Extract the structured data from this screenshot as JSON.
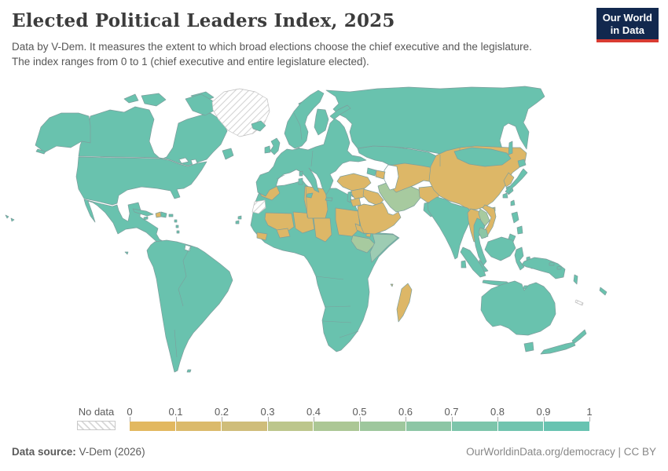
{
  "header": {
    "title": "Elected Political Leaders Index, 2025",
    "subtitle_line1": "Data by V-Dem. It measures the extent to which broad elections choose the chief executive and the legislature.",
    "subtitle_line2": "The index ranges from 0 to 1 (chief executive and entire legislature elected).",
    "logo_line1": "Our World",
    "logo_line2": "in Data",
    "logo_bg": "#12284E",
    "logo_accent": "#D93B32"
  },
  "legend": {
    "no_data_label": "No data",
    "ticks": [
      "0",
      "0.1",
      "0.2",
      "0.3",
      "0.4",
      "0.5",
      "0.6",
      "0.7",
      "0.8",
      "0.9",
      "1"
    ],
    "segment_colors": [
      "#E2B860",
      "#DBBA6B",
      "#CFBD7A",
      "#BCC68C",
      "#ACC795",
      "#9EC79D",
      "#8DC6A5",
      "#7DC5AB",
      "#71C4AF",
      "#68C3B1"
    ]
  },
  "footer": {
    "source_label": "Data source:",
    "source_value": " V-Dem (2026)",
    "right_text": "OurWorldinData.org/democracy | CC BY"
  },
  "chart_data": {
    "type": "heatmap",
    "title": "Elected Political Leaders Index, 2025",
    "legend_scale": {
      "min": 0,
      "max": 1,
      "tick_step": 0.1
    },
    "category_legend": {
      "hi": "high index (teal, ~0.8-1)",
      "mid": "middle index (sage green, ~0.4-0.6)",
      "mid2": "upper-middle index (green-teal, ~0.6-0.7)",
      "pale": "middle index (pale green-teal)",
      "lo": "low index (tan, ~0-0.3)",
      "nodata": "No data"
    }
  },
  "map": {
    "palette": {
      "hi": "#69C2AE",
      "lo": "#DDB767",
      "mid": "#A7CA9F",
      "mid2": "#8CC6A6",
      "pale": "#9DCCB3",
      "blank": "#FFFFFF",
      "border": "#7D9E9C",
      "nodata_stroke": "#BFBFBF"
    },
    "regions": [
      {
        "n": "canada",
        "c": "hi",
        "t": "115,48 140,40 158,43 172,36 190,40 196,52 193,64 190,80 196,95 205,103 212,100 220,88 224,70 227,57 238,52 255,47 268,44 283,54 289,67 281,84 271,94 263,103 251,107 239,111 228,108 215,103 203,101 100,99 102,85 108,70 113,57"
      },
      {
        "n": "alaska",
        "c": "hi",
        "t": "45,85 52,62 63,50 78,44 100,44 113,48 115,60 115,82 104,80 90,88 72,86 57,94"
      },
      {
        "n": "aleutians",
        "c": "hi",
        "t": "48,90 58,93 56,96 46,93"
      },
      {
        "n": "banks-island",
        "c": "hi",
        "t": "158,26 172,20 176,28 164,31"
      },
      {
        "n": "victoria-island",
        "c": "hi",
        "t": "180,22 202,19 211,27 199,35 184,32"
      },
      {
        "n": "ellesmere-island",
        "c": "hi",
        "t": "243,22 262,17 272,24 258,30"
      },
      {
        "n": "baffin-island",
        "c": "hi",
        "t": "236,26 256,20 270,28 274,40 261,47 245,41"
      },
      {
        "n": "greenland",
        "c": "nodata",
        "t": "270,30 285,17 305,13 325,17 340,26 343,42 336,58 322,70 305,74 290,66 278,52 271,40"
      },
      {
        "n": "iceland",
        "c": "hi",
        "t": "320,58 332,54 338,60 331,67 322,64"
      },
      {
        "n": "newfoundland",
        "c": "hi",
        "t": "283,92 294,89 297,98 287,103"
      },
      {
        "n": "usa",
        "c": "hi",
        "t": "100,100 203,102 215,104 228,109 239,112 251,108 263,106 257,116 250,126 243,135 234,140 225,141 229,151 222,153 217,143 200,140 180,138 162,142 151,149 149,159 143,161 122,156 107,153 100,141 97,125 99,112"
      },
      {
        "n": "great-lake-1",
        "c": "blank",
        "t": "228,103 236,101 240,106 231,108"
      },
      {
        "n": "great-lake-2",
        "c": "blank",
        "t": "243,104 249,103 251,108 245,110"
      },
      {
        "n": "mexico-central-america",
        "c": "hi",
        "t": "107,154 122,158 143,163 149,161 151,168 156,178 163,182 165,172 163,161 176,158 179,168 178,176 192,185 201,191 199,198 203,205 209,208 216,210 204,212 195,204 186,196 174,190 160,192 150,198 144,184 134,171 124,162 118,158 112,156 117,170 121,183 115,175 109,161"
      },
      {
        "n": "cuba",
        "c": "hi",
        "t": "169,166 186,169 195,173 187,175 171,170"
      },
      {
        "n": "haiti",
        "c": "lo",
        "t": "198,172 204,170 205,176 199,177"
      },
      {
        "n": "dominican-republic",
        "c": "hi",
        "t": "205,170 212,172 211,177 205,176"
      },
      {
        "n": "jamaica",
        "c": "hi",
        "t": "183,177 188,176 188,179 183,180"
      },
      {
        "n": "puerto-rico",
        "c": "hi",
        "t": "215,173 220,173 220,176 215,176"
      },
      {
        "n": "antilles-1",
        "c": "hi",
        "t": "222,180 225,180 225,183 222,183"
      },
      {
        "n": "antilles-2",
        "c": "hi",
        "t": "224,187 227,187 227,190 224,190"
      },
      {
        "n": "antilles-3",
        "c": "hi",
        "t": "225,194 228,194 228,197 225,197"
      },
      {
        "n": "hawaii-1",
        "c": "hi",
        "t": "7,174 11,176 9,178"
      },
      {
        "n": "hawaii-2",
        "c": "hi",
        "t": "14,178 18,180 15,182"
      },
      {
        "n": "south-america",
        "c": "hi",
        "t": "197,208 212,206 225,208 236,211 243,213 252,216 260,221 268,227 280,236 292,246 296,257 290,271 279,287 268,299 257,312 246,324 240,333 234,346 229,361 226,372 222,374 220,366 216,349 211,329 207,305 203,280 199,255 195,240 189,228 187,219 192,212"
      },
      {
        "n": "french-guiana",
        "c": "blank",
        "t": "236,212 243,214 241,220 235,218"
      },
      {
        "n": "galapagos",
        "c": "hi",
        "t": "159,221 163,221 162,224"
      },
      {
        "n": "falklands",
        "c": "hi",
        "t": "239,371 243,371 242,374 238,374"
      },
      {
        "n": "africa-base",
        "c": "hi",
        "t": "340,135 352,137 362,136 375,133 385,130 389,135 395,140 405,143 413,140 428,140 443,148 452,162 458,175 465,186 469,193 472,195 485,197 500,198 508,203 495,214 482,227 475,240 468,255 470,272 468,290 462,308 455,322 445,335 434,346 428,348 418,340 412,324 410,308 414,292 408,275 404,262 402,252 397,241 391,231 387,226 375,222 360,219 348,215 337,209 330,202 323,194 319,187 322,171 325,157 329,147 334,140"
      },
      {
        "n": "morocco",
        "c": "lo",
        "t": "334,139 352,137 356,146 346,155 333,150 329,144"
      },
      {
        "n": "western-sahara",
        "c": "nodata",
        "t": "324,157 337,155 338,165 329,172 321,170"
      },
      {
        "n": "mali",
        "c": "lo",
        "t": "338,171 371,172 374,189 361,198 351,192 341,187 337,179"
      },
      {
        "n": "guinea",
        "c": "lo",
        "t": "327,196 340,198 338,206 327,203"
      },
      {
        "n": "burkina-faso",
        "c": "lo",
        "t": "352,193 366,191 369,201 356,203"
      },
      {
        "n": "niger",
        "c": "lo",
        "t": "373,170 397,172 400,192 385,197 376,191"
      },
      {
        "n": "libya",
        "c": "lo",
        "t": "388,137 414,141 417,167 414,178 392,178 387,154"
      },
      {
        "n": "chad",
        "c": "lo",
        "t": "399,178 420,178 422,199 414,208 402,202"
      },
      {
        "n": "sudan",
        "c": "lo",
        "t": "427,165 456,169 458,191 448,201 431,199 427,180"
      },
      {
        "n": "eritrea",
        "c": "lo",
        "t": "452,185 468,192 464,198 454,193"
      },
      {
        "n": "djibouti",
        "c": "lo",
        "t": "466,198 472,197 471,202 466,201"
      },
      {
        "n": "ethiopia",
        "c": "mid",
        "t": "449,200 470,204 477,211 467,222 454,217 447,207"
      },
      {
        "n": "somalia",
        "c": "pale",
        "t": "474,198 501,199 506,203 493,214 481,226 473,234 471,221 477,209"
      },
      {
        "n": "madagascar",
        "c": "lo",
        "t": "511,268 519,261 524,269 521,285 513,302 507,310 505,294 509,277"
      },
      {
        "n": "comoros",
        "c": "lo",
        "t": "497,262 500,262 499,265"
      },
      {
        "n": "cape-verde-1",
        "c": "hi",
        "t": "303,176 307,175 307,179 303,179"
      },
      {
        "n": "cape-verde-2",
        "c": "hi",
        "t": "300,182 304,181 304,185 300,185"
      },
      {
        "n": "turkey",
        "c": "lo",
        "t": "433,125 450,121 468,126 472,133 464,140 448,143 436,138 429,131"
      },
      {
        "n": "cyprus",
        "c": "hi",
        "t": "446,148 452,147 449,151"
      },
      {
        "n": "israel-lebanon",
        "c": "hi",
        "t": "443,145 447,144 446,158 442,156"
      },
      {
        "n": "syria",
        "c": "lo",
        "t": "447,143 463,140 466,150 452,154 448,148"
      },
      {
        "n": "jordan",
        "c": "lo",
        "t": "446,155 457,152 459,161 449,163"
      },
      {
        "n": "iraq",
        "c": "lo",
        "t": "463,141 481,146 488,155 481,162 469,157 462,149"
      },
      {
        "n": "arabia",
        "c": "lo",
        "t": "455,163 463,160 474,162 487,158 492,167 494,172 500,174 507,170 510,177 501,187 491,193 477,198 463,197 459,188 456,174"
      },
      {
        "n": "iran",
        "c": "mid",
        "t": "481,137 497,131 511,134 524,138 533,142 535,152 527,162 514,168 504,170 497,164 489,154 483,145"
      },
      {
        "n": "afghanistan",
        "c": "lo",
        "t": "533,139 553,137 561,145 555,156 544,158 534,151"
      },
      {
        "n": "pakistan",
        "c": "hi",
        "t": "540,159 556,156 563,163 558,173 548,176 539,168"
      },
      {
        "n": "kazakhstan",
        "c": "hi",
        "t": "455,89 475,86 500,87 522,90 545,94 558,100 560,112 547,117 530,114 510,111 495,110 487,106 477,104 466,100 457,95"
      },
      {
        "n": "central-asia",
        "c": "lo",
        "t": "494,111 515,108 536,111 552,114 559,122 552,132 539,130 527,136 514,141 504,145 497,138 507,126 505,113"
      },
      {
        "n": "caspian-sea",
        "c": "blank",
        "t": "494,110 505,112 507,125 503,140 496,142 489,129 489,117"
      },
      {
        "n": "azerbaijan",
        "c": "lo",
        "t": "479,117 490,119 488,128 478,125"
      },
      {
        "n": "georgia-armenia",
        "c": "hi",
        "t": "468,114 479,117 477,124 467,121"
      },
      {
        "n": "russia",
        "c": "hi",
        "t": "415,15 445,17 480,13 520,11 560,13 600,11 640,12 668,10 688,13 693,23 683,31 672,39 668,52 666,56 673,68 670,90 662,77 656,61 647,57 641,61 636,79 640,93 637,111 630,108 615,104 600,96 585,92 570,94 560,96 545,93 522,89 500,87 475,86 455,89 448,80 445,68 448,58 440,50 430,45 424,39 431,32 427,23"
      },
      {
        "n": "svalbard",
        "c": "hi",
        "t": "380,32 388,28 396,30 390,36 382,36"
      },
      {
        "n": "novaya-zemlya",
        "c": "hi",
        "t": "420,48 430,40 442,34 446,38 434,45 425,52"
      },
      {
        "n": "china",
        "c": "lo",
        "t": "548,112 555,98 568,92 585,88 605,86 628,87 648,88 662,88 670,95 668,106 660,114 652,120 648,127 642,138 635,148 627,157 618,163 606,167 595,166 585,160 572,156 560,150 552,142 546,130"
      },
      {
        "n": "mongolia",
        "c": "hi",
        "t": "578,93 600,88 625,90 645,95 650,102 639,110 617,112 597,109 582,102"
      },
      {
        "n": "north-korea",
        "c": "lo",
        "t": "647,120 654,126 650,134 644,138 641,130"
      },
      {
        "n": "south-korea",
        "c": "hi",
        "t": "644,139 651,136 653,143 647,148"
      },
      {
        "n": "japan-honshu",
        "c": "hi",
        "t": "666,115 671,120 664,128 656,136 650,141 647,147 643,144 650,136 658,127 663,119"
      },
      {
        "n": "japan-hokkaido",
        "c": "hi",
        "t": "659,105 667,103 669,110 661,113"
      },
      {
        "n": "japan-kyushu",
        "c": "hi",
        "t": "640,148 645,146 646,152 640,152"
      },
      {
        "n": "sakhalin",
        "c": "hi",
        "t": "648,82 652,80 652,95 647,97"
      },
      {
        "n": "taiwan",
        "c": "hi",
        "t": "650,157 654,155 655,161 650,162"
      },
      {
        "n": "hainan",
        "c": "lo",
        "t": "625,165 630,164 630,169 625,169"
      },
      {
        "n": "india",
        "c": "hi",
        "t": "544,160 548,156 556,151 567,154 575,159 585,162 595,165 600,170 606,172 600,179 596,186 590,199 585,213 582,228 579,230 574,217 567,203 559,189 551,177 545,168"
      },
      {
        "n": "sri-lanka",
        "c": "hi",
        "t": "587,233 592,232 593,241 587,241"
      },
      {
        "n": "bangladesh",
        "c": "lo",
        "t": "597,172 605,170 607,181 599,182"
      },
      {
        "n": "myanmar",
        "c": "lo",
        "t": "599,166 609,169 613,176 611,186 605,196 609,206 603,208 599,195 596,181 595,171"
      },
      {
        "n": "thailand",
        "c": "hi",
        "t": "607,178 614,181 617,189 613,197 609,201 611,211 615,223 619,233 615,238 609,227 605,213 603,199 603,187"
      },
      {
        "n": "malaysia",
        "c": "hi",
        "t": "610,231 616,239 621,245 614,247 609,238"
      },
      {
        "n": "laos",
        "c": "mid",
        "t": "611,166 619,171 623,181 617,188 612,181 609,172"
      },
      {
        "n": "vietnam",
        "c": "lo",
        "t": "617,161 629,166 631,176 627,189 621,199 617,203 614,197 621,187 625,177 619,169 614,165"
      },
      {
        "n": "cambodia",
        "c": "mid2",
        "t": "611,190 619,193 621,201 613,204 609,196"
      },
      {
        "n": "philippines-luzon",
        "c": "hi",
        "t": "651,172 658,170 660,180 654,184"
      },
      {
        "n": "philippines-visayas",
        "c": "hi",
        "t": "658,190 664,188 665,197 659,198"
      },
      {
        "n": "philippines-mindanao",
        "c": "hi",
        "t": "649,198 656,201 653,208 647,204"
      },
      {
        "n": "borneo",
        "c": "hi",
        "t": "621,208 638,202 652,206 656,216 649,226 637,232 625,227 617,218"
      },
      {
        "n": "sumatra",
        "c": "hi",
        "t": "589,215 598,219 606,229 614,241 618,251 611,253 602,244 593,231 586,221"
      },
      {
        "n": "java",
        "c": "hi",
        "t": "615,257 630,258 645,259 650,263 639,264 624,262 614,260"
      },
      {
        "n": "sulawesi",
        "c": "hi",
        "t": "657,218 664,215 666,226 661,232 667,240 662,244 657,234 655,225"
      },
      {
        "n": "lesser-sunda-1",
        "c": "hi",
        "t": "654,263 662,262 661,266 653,266"
      },
      {
        "n": "lesser-sunda-2",
        "c": "hi",
        "t": "667,264 675,264 674,268 666,268"
      },
      {
        "n": "moluccas-1",
        "c": "hi",
        "t": "670,228 674,227 675,232 670,232"
      },
      {
        "n": "moluccas-2",
        "c": "hi",
        "t": "676,238 680,237 680,242 676,242"
      },
      {
        "n": "new-guinea",
        "c": "hi",
        "t": "667,233 680,228 695,230 710,236 719,243 717,253 707,255 699,248 688,245 678,242 670,240 664,237"
      },
      {
        "n": "solomons-1",
        "c": "hi",
        "t": "699,235 705,234 705,238 699,238"
      },
      {
        "n": "solomons-2",
        "c": "hi",
        "t": "709,240 714,239 714,243 709,243"
      },
      {
        "n": "vanuatu",
        "c": "hi",
        "t": "731,250 735,252 734,262 730,258"
      },
      {
        "n": "fiji",
        "c": "hi",
        "t": "764,266 772,272 770,276 763,270"
      },
      {
        "n": "new-caledonia",
        "c": "nodata",
        "t": "733,282 742,286 741,289 732,285"
      },
      {
        "n": "australia",
        "c": "hi",
        "t": "613,278 625,268 640,262 655,258 664,262 667,270 673,263 682,260 692,265 700,274 706,286 707,300 700,314 688,322 672,327 657,326 647,318 637,314 627,316 619,308 612,295"
      },
      {
        "n": "tasmania",
        "c": "hi",
        "t": "667,338 678,336 679,346 669,348"
      },
      {
        "n": "new-zealand-north",
        "c": "hi",
        "t": "744,320 746,325 738,332 730,338 728,334 736,327"
      },
      {
        "n": "new-zealand-south",
        "c": "hi",
        "t": "730,336 732,340 720,345 700,350 688,351 692,346 706,342 720,338"
      },
      {
        "n": "uk",
        "c": "hi",
        "t": "345,80 352,76 356,82 354,92 349,97 344,92 348,86"
      },
      {
        "n": "ireland",
        "c": "hi",
        "t": "337,88 343,86 344,94 337,95"
      },
      {
        "n": "scandinavia",
        "c": "hi",
        "t": "368,84 362,70 366,55 374,42 384,30 395,21 405,15 412,19 407,30 399,38 391,48 388,58 392,68 390,79 384,86 375,89"
      },
      {
        "n": "finland",
        "c": "hi",
        "t": "404,39 414,40 418,52 414,66 405,72 400,62 402,48"
      },
      {
        "n": "denmark",
        "c": "hi",
        "t": "376,90 381,88 382,94 377,95"
      },
      {
        "n": "europe-mainland",
        "c": "hi",
        "t": "338,150 328,145 326,132 331,123 342,119 348,112 352,102 358,95 365,90 372,91 382,89 392,91 402,87 412,84 420,57 426,51 432,55 438,62 442,72 445,82 442,92 448,98 459,100 466,104 456,106 445,105 436,108 431,113 427,118 420,122 424,130 420,140 415,148 410,139 407,129 403,122 397,118 393,114 398,121 402,129 404,139 406,145 400,142 395,133 389,125 383,119 377,116 369,120 361,122 354,128 351,138 343,142"
      },
      {
        "n": "sicily",
        "c": "hi",
        "t": "391,147 398,146 396,152 390,151"
      },
      {
        "n": "sardinia",
        "c": "hi",
        "t": "380,128 385,127 385,135 380,135"
      },
      {
        "n": "corsica",
        "c": "hi",
        "t": "381,119 385,118 385,124 381,124"
      },
      {
        "n": "crete",
        "c": "hi",
        "t": "415,152 423,152 422,156 414,155"
      }
    ],
    "borders": [
      "M389,136 L391,177",
      "M402,252 L437,256",
      "M413,291 L446,290",
      "M411,309 L447,311",
      "M432,330 L456,322",
      "M243,213 L233,232 L237,252 L227,268 L233,290",
      "M222,320 L225,355",
      "M352,128 L362,123",
      "M398,92 L396,112",
      "M374,44 L382,60 L384,78",
      "M560,97 L560,112",
      "M585,92 L585,88"
    ]
  }
}
